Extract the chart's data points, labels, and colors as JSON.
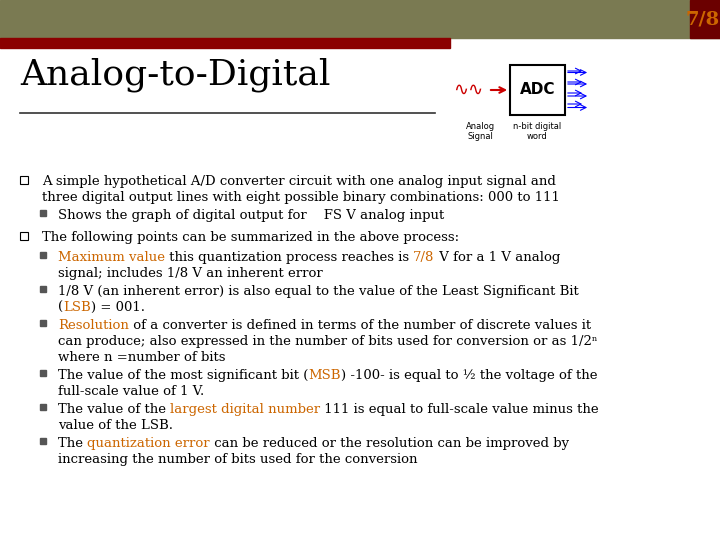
{
  "background_color": "#ffffff",
  "header_bar_color": "#7a7a52",
  "red_bar_color": "#8b0000",
  "dark_red_color": "#6b0000",
  "slide_number": "7/8",
  "slide_number_color": "#cc6600",
  "title": "Analog-to-Digital",
  "orange_color": "#cc6600",
  "black_color": "#000000",
  "bullet_lines": [
    {
      "indent": 0,
      "bullet_type": "square_open",
      "parts": [
        {
          "text": "A simple hypothetical A/D converter circuit with one analog input signal and\nthree digital output lines with eight possible binary combinations: 000 to 111",
          "color": "#000000"
        }
      ]
    },
    {
      "indent": 1,
      "bullet_type": "small_filled",
      "parts": [
        {
          "text": "Shows the graph of digital output for    FS V analog input",
          "color": "#000000"
        }
      ]
    },
    {
      "indent": 0,
      "bullet_type": "square_open",
      "parts": [
        {
          "text": "The following points can be summarized in the above process:",
          "color": "#000000"
        }
      ]
    },
    {
      "indent": 1,
      "bullet_type": "small_filled",
      "parts": [
        {
          "text": "Maximum value",
          "color": "#cc6600"
        },
        {
          "text": " this quantization process reaches is ",
          "color": "#000000"
        },
        {
          "text": "7/8",
          "color": "#cc6600"
        },
        {
          "text": " V for a 1 V analog\nsignal; includes 1/8 V an inherent error",
          "color": "#000000"
        }
      ]
    },
    {
      "indent": 1,
      "bullet_type": "small_filled",
      "parts": [
        {
          "text": "1/8 V (an inherent error) is also equal to the value of the Least Significant Bit\n(",
          "color": "#000000"
        },
        {
          "text": "LSB",
          "color": "#cc6600"
        },
        {
          "text": ") = 001.",
          "color": "#000000"
        }
      ]
    },
    {
      "indent": 1,
      "bullet_type": "small_filled",
      "parts": [
        {
          "text": "Resolution",
          "color": "#cc6600"
        },
        {
          "text": " of a converter is defined in terms of the number of discrete values it\ncan produce; also expressed in the number of bits used for conversion or as 1/2ⁿ\nwhere n =number of bits",
          "color": "#000000"
        }
      ]
    },
    {
      "indent": 1,
      "bullet_type": "small_filled",
      "parts": [
        {
          "text": "The value of the most significant bit (",
          "color": "#000000"
        },
        {
          "text": "MSB",
          "color": "#cc6600"
        },
        {
          "text": ") -100- is equal to ½ the voltage of the\nfull-scale value of 1 V.",
          "color": "#000000"
        }
      ]
    },
    {
      "indent": 1,
      "bullet_type": "small_filled",
      "parts": [
        {
          "text": "The value of the ",
          "color": "#000000"
        },
        {
          "text": "largest digital number",
          "color": "#cc6600"
        },
        {
          "text": " 111 is equal to full-scale value minus the\nvalue of the LSB.",
          "color": "#000000"
        }
      ]
    },
    {
      "indent": 1,
      "bullet_type": "small_filled",
      "parts": [
        {
          "text": "The ",
          "color": "#000000"
        },
        {
          "text": "quantization error",
          "color": "#cc6600"
        },
        {
          "text": " can be reduced or the resolution can be improved by\nincreasing the number of bits used for the conversion",
          "color": "#000000"
        }
      ]
    }
  ]
}
